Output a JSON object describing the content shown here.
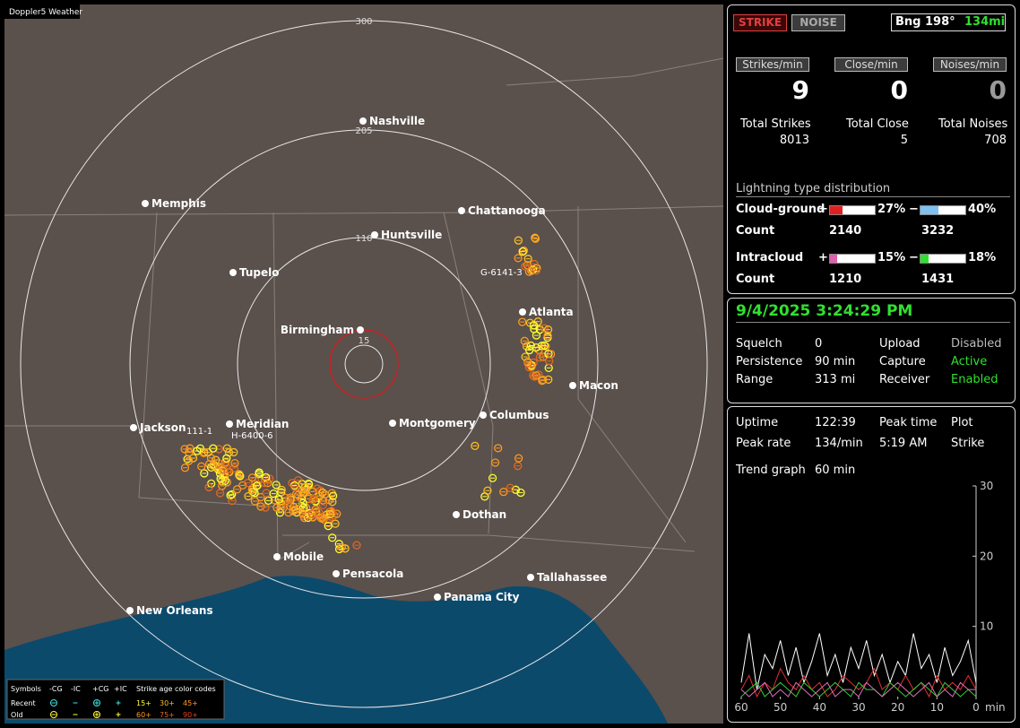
{
  "map": {
    "title": "Doppler5 Weather",
    "range_labels": [
      "300",
      "205",
      "110",
      "15"
    ],
    "cities": [
      "Nashville",
      "Memphis",
      "Chattanooga",
      "Huntsville",
      "Tupelo",
      "Atlanta",
      "Birmingham",
      "Macon",
      "Columbus",
      "Montgomery",
      "Jackson",
      "Meridian",
      "Dothan",
      "Mobile",
      "Pensacola",
      "Tallahassee",
      "Panama City",
      "New Orleans"
    ],
    "storm_labels": [
      "G-6141-3",
      "111-1",
      "H-6400-6"
    ],
    "legend": {
      "symbols_label": "Symbols",
      "types": [
        "-CG",
        "-IC",
        "+CG",
        "+IC"
      ],
      "age_title": "Strike age color codes",
      "rows": [
        "Recent",
        "Old"
      ],
      "recent_ages": [
        "15+",
        "30+",
        "45+"
      ],
      "old_ages": [
        "60+",
        "75+",
        "90+"
      ]
    }
  },
  "strike_panel": {
    "buttons": [
      "STRIKE",
      "NOISE"
    ],
    "bearing": "Bng 198°",
    "distance": "134mi",
    "rate_labels": [
      "Strikes/min",
      "Close/min",
      "Noises/min"
    ],
    "rates": [
      9,
      0,
      0
    ],
    "total_labels": [
      "Total Strikes",
      "Total Close",
      "Total Noises"
    ],
    "totals": [
      8013,
      5,
      708
    ],
    "distribution_title": "Lightning type distribution",
    "rows": [
      {
        "name": "Cloud-ground",
        "count_label": "Count",
        "positive": {
          "value": 27,
          "label": "27%"
        },
        "negative": {
          "value": 40,
          "label": "40%"
        },
        "counts": [
          2140,
          3232
        ]
      },
      {
        "name": "Intracloud",
        "count_label": "Count",
        "positive": {
          "value": 15,
          "label": "15%"
        },
        "negative": {
          "value": 18,
          "label": "18%"
        },
        "counts": [
          1210,
          1431
        ]
      }
    ],
    "signs": [
      "+",
      "−"
    ]
  },
  "status_panel": {
    "datetime": "9/4/2025 3:24:29 PM",
    "rows": [
      [
        "Squelch",
        "0",
        "Upload",
        "Disabled"
      ],
      [
        "Persistence",
        "90 min",
        "Capture",
        "Active"
      ],
      [
        "Range",
        "313 mi",
        "Receiver",
        "Enabled"
      ]
    ]
  },
  "stats_panel": {
    "rows": [
      [
        "Uptime",
        "122:39",
        "Peak time",
        "Plot"
      ],
      [
        "Peak rate",
        "134/min",
        "5:19 AM",
        "Strike"
      ]
    ],
    "trend_label": "Trend graph",
    "trend_window": "60 min"
  },
  "chart_data": {
    "type": "line",
    "xlim": [
      60,
      0
    ],
    "xticks": [
      60,
      50,
      40,
      30,
      20,
      10,
      0
    ],
    "x_unit": "min",
    "ylim": [
      0,
      30
    ],
    "yticks": [
      10,
      20,
      30
    ],
    "series": [
      {
        "color": "#ffffff",
        "values": [
          2,
          9,
          1,
          6,
          4,
          8,
          3,
          7,
          2,
          5,
          9,
          3,
          6,
          2,
          7,
          4,
          8,
          3,
          6,
          2,
          5,
          3,
          9,
          4,
          6,
          2,
          7,
          3,
          5,
          8,
          2
        ]
      },
      {
        "color": "#e03030",
        "values": [
          1,
          3,
          0,
          2,
          1,
          4,
          2,
          1,
          3,
          1,
          2,
          0,
          1,
          3,
          2,
          1,
          2,
          4,
          1,
          2,
          1,
          3,
          1,
          2,
          0,
          3,
          1,
          2,
          1,
          3,
          1
        ]
      },
      {
        "color": "#30d030",
        "values": [
          0,
          1,
          2,
          0,
          1,
          2,
          1,
          0,
          2,
          1,
          0,
          1,
          2,
          1,
          0,
          2,
          1,
          1,
          0,
          2,
          1,
          0,
          1,
          2,
          1,
          0,
          2,
          1,
          0,
          1,
          0
        ]
      },
      {
        "color": "#e070c0",
        "values": [
          1,
          0,
          1,
          2,
          0,
          1,
          0,
          2,
          1,
          0,
          1,
          2,
          0,
          1,
          1,
          0,
          2,
          1,
          0,
          1,
          2,
          1,
          0,
          1,
          2,
          0,
          1,
          0,
          2,
          1,
          1
        ]
      }
    ]
  }
}
